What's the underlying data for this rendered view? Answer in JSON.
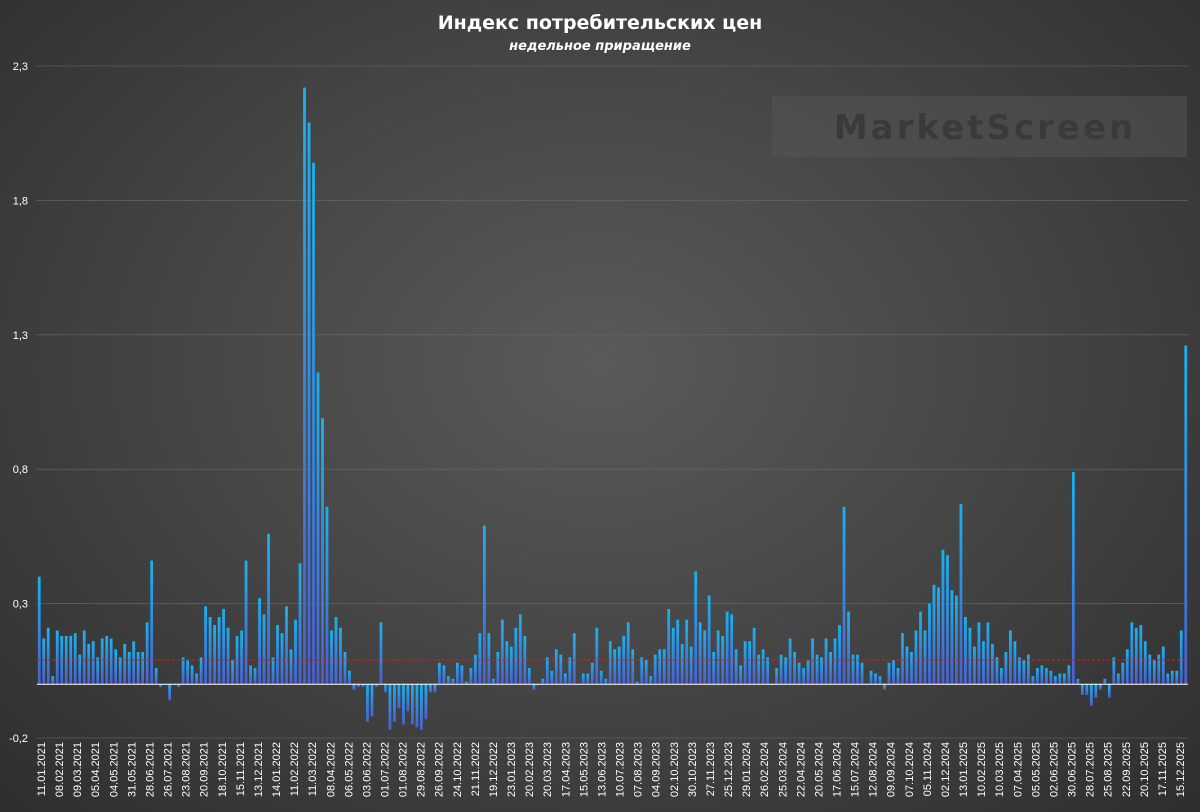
{
  "chart_data": {
    "type": "bar",
    "title": "Индекс потребительских цен",
    "subtitle": "недельное приращение",
    "watermark": "MarketScreen",
    "ylim": [
      -0.2,
      2.3
    ],
    "yticks": [
      -0.2,
      0.3,
      0.8,
      1.3,
      1.8,
      2.3
    ],
    "ytick_labels": [
      "-0,2",
      "0,3",
      "0,8",
      "1,3",
      "1,8",
      "2,3"
    ],
    "reference_line": 0.09,
    "grid": true,
    "colors": {
      "bar_top": "#19b2f0",
      "bar_bottom": "#4a5fd0",
      "reference": "#d02020",
      "grid": "#6a6a6a",
      "zero": "#ffffff"
    },
    "xtick_labels": [
      "11.01.2021",
      "08.02.2021",
      "09.03.2021",
      "05.04.2021",
      "04.05.2021",
      "31.05.2021",
      "28.06.2021",
      "26.07.2021",
      "23.08.2021",
      "20.09.2021",
      "18.10.2021",
      "15.11.2021",
      "13.12.2021",
      "14.01.2022",
      "11.02.2022",
      "11.03.2022",
      "08.04.2022",
      "06.05.2022",
      "03.06.2022",
      "01.07.2022",
      "01.08.2022",
      "29.08.2022",
      "26.09.2022",
      "24.10.2022",
      "21.11.2022",
      "19.12.2022",
      "23.01.2023",
      "20.02.2023",
      "20.03.2023",
      "17.04.2023",
      "15.05.2023",
      "13.06.2023",
      "10.07.2023",
      "07.08.2023",
      "04.09.2023",
      "02.10.2023",
      "30.10.2023",
      "27.11.2023",
      "25.12.2023",
      "29.01.2024",
      "26.02.2024",
      "25.03.2024",
      "22.04.2024",
      "20.05.2024",
      "17.06.2024",
      "15.07.2024",
      "12.08.2024",
      "09.09.2024",
      "07.10.2024",
      "05.11.2024",
      "02.12.2024",
      "13.01.2025",
      "10.02.2025",
      "10.03.2025",
      "07.04.2025",
      "05.05.2025",
      "02.06.2025",
      "30.06.2025",
      "28.07.2025",
      "25.08.2025",
      "22.09.2025",
      "20.10.2025",
      "17.11.2025",
      "15.12.2025"
    ],
    "values": [
      0.4,
      0.17,
      0.21,
      0.03,
      0.2,
      0.18,
      0.18,
      0.18,
      0.19,
      0.11,
      0.2,
      0.15,
      0.16,
      0.1,
      0.17,
      0.18,
      0.17,
      0.13,
      0.1,
      0.15,
      0.12,
      0.16,
      0.12,
      0.12,
      0.23,
      0.46,
      0.06,
      -0.01,
      0,
      -0.06,
      0,
      -0.01,
      0.1,
      0.09,
      0.07,
      0.04,
      0.1,
      0.29,
      0.25,
      0.22,
      0.25,
      0.28,
      0.21,
      0.09,
      0.18,
      0.2,
      0.46,
      0.07,
      0.06,
      0.32,
      0.26,
      0.56,
      0.1,
      0.22,
      0.19,
      0.29,
      0.13,
      0.24,
      0.45,
      2.22,
      2.09,
      1.94,
      1.16,
      0.99,
      0.66,
      0.2,
      0.25,
      0.21,
      0.12,
      0.05,
      -0.02,
      -0.01,
      -0.01,
      -0.14,
      -0.12,
      -0.01,
      0.23,
      -0.03,
      -0.17,
      -0.14,
      -0.09,
      -0.15,
      -0.1,
      -0.15,
      -0.16,
      -0.17,
      -0.13,
      -0.03,
      -0.03,
      0.08,
      0.07,
      0.03,
      0.02,
      0.08,
      0.07,
      0.01,
      0.06,
      0.11,
      0.19,
      0.59,
      0.19,
      0.02,
      0.12,
      0.24,
      0.16,
      0.14,
      0.21,
      0.26,
      0.18,
      0.06,
      -0.02,
      0,
      0.02,
      0.1,
      0.05,
      0.13,
      0.11,
      0.04,
      0.1,
      0.19,
      0,
      0.04,
      0.04,
      0.08,
      0.21,
      0.05,
      0.02,
      0.16,
      0.13,
      0.14,
      0.18,
      0.23,
      0.13,
      0.01,
      0.1,
      0.09,
      0.03,
      0.11,
      0.13,
      0.13,
      0.28,
      0.21,
      0.24,
      0.15,
      0.24,
      0.14,
      0.42,
      0.23,
      0.2,
      0.33,
      0.12,
      0.2,
      0.18,
      0.27,
      0.26,
      0.13,
      0.07,
      0.16,
      0.16,
      0.21,
      0.11,
      0.13,
      0.1,
      0,
      0.06,
      0.11,
      0.1,
      0.17,
      0.12,
      0.08,
      0.06,
      0.09,
      0.17,
      0.11,
      0.1,
      0.17,
      0.12,
      0.17,
      0.22,
      0.66,
      0.27,
      0.11,
      0.11,
      0.08,
      0,
      0.05,
      0.04,
      0.03,
      -0.02,
      0.08,
      0.09,
      0.06,
      0.19,
      0.14,
      0.12,
      0.2,
      0.27,
      0.2,
      0.3,
      0.37,
      0.36,
      0.5,
      0.48,
      0.35,
      0.33,
      0.67,
      0.25,
      0.21,
      0.14,
      0.23,
      0.16,
      0.23,
      0.15,
      0.1,
      0.06,
      0.12,
      0.2,
      0.16,
      0.1,
      0.09,
      0.11,
      0.03,
      0.06,
      0.07,
      0.06,
      0.05,
      0.03,
      0.04,
      0.04,
      0.07,
      0.79,
      0.02,
      -0.04,
      -0.04,
      -0.08,
      -0.05,
      -0.02,
      0.02,
      -0.05,
      0.1,
      0.04,
      0.08,
      0.13,
      0.23,
      0.21,
      0.22,
      0.16,
      0.11,
      0.09,
      0.11,
      0.14,
      0.04,
      0.05,
      0.05,
      0.2,
      1.26
    ]
  }
}
